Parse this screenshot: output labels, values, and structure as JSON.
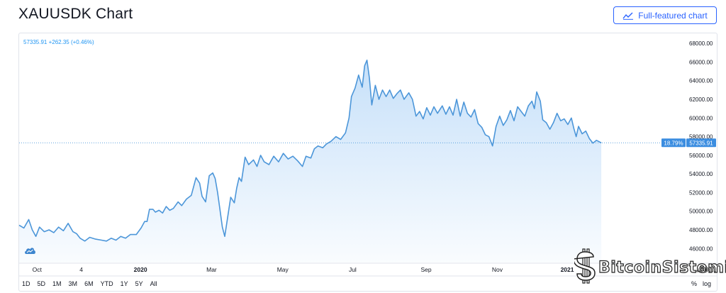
{
  "header": {
    "title": "XAUUSDK Chart",
    "full_chart_label": "Full-featured chart"
  },
  "legend": {
    "text": "57335.91 +262.35 (+0.46%)"
  },
  "price_label": {
    "percent": "18.79%",
    "value": "57335.91"
  },
  "range_buttons": [
    "1D",
    "5D",
    "1M",
    "3M",
    "6M",
    "YTD",
    "1Y",
    "5Y",
    "All"
  ],
  "toggles": {
    "percent": "%",
    "log": "log"
  },
  "watermark": {
    "brand": "BitcoinSistemi",
    "domain": ".com"
  },
  "colors": {
    "line": "#4c96d9",
    "accent": "#2962ff",
    "label_bg": "#3b8de0"
  },
  "chart_data": {
    "type": "area",
    "title": "",
    "xlabel": "",
    "ylabel": "",
    "ylim": [
      44500,
      69000
    ],
    "y_ticks": [
      46000,
      48000,
      50000,
      52000,
      54000,
      56000,
      58000,
      60000,
      62000,
      64000,
      66000,
      68000
    ],
    "y_tick_labels": [
      "46000.00",
      "48000.00",
      "50000.00",
      "52000.00",
      "54000.00",
      "56000.00",
      "58000.00",
      "60000.00",
      "62000.00",
      "64000.00",
      "66000.00",
      "68000.00"
    ],
    "x_ticks": [
      {
        "label": "Oct",
        "x": 0.03
      },
      {
        "label": "4",
        "x": 0.104
      },
      {
        "label": "2020",
        "x": 0.203
      },
      {
        "label": "Mar",
        "x": 0.322
      },
      {
        "label": "May",
        "x": 0.441
      },
      {
        "label": "Jul",
        "x": 0.558
      },
      {
        "label": "Sep",
        "x": 0.681
      },
      {
        "label": "Nov",
        "x": 0.8
      },
      {
        "label": "2021",
        "x": 0.917
      }
    ],
    "last_value": 57335.91,
    "series": [
      {
        "values": [
          [
            0.0,
            48500
          ],
          [
            0.008,
            48200
          ],
          [
            0.016,
            49100
          ],
          [
            0.022,
            48000
          ],
          [
            0.028,
            47300
          ],
          [
            0.034,
            48300
          ],
          [
            0.042,
            47800
          ],
          [
            0.05,
            48000
          ],
          [
            0.058,
            47700
          ],
          [
            0.066,
            48300
          ],
          [
            0.074,
            47900
          ],
          [
            0.082,
            48700
          ],
          [
            0.09,
            47800
          ],
          [
            0.096,
            47600
          ],
          [
            0.102,
            47100
          ],
          [
            0.11,
            46800
          ],
          [
            0.118,
            47200
          ],
          [
            0.128,
            47000
          ],
          [
            0.138,
            46900
          ],
          [
            0.146,
            46800
          ],
          [
            0.154,
            47100
          ],
          [
            0.162,
            46900
          ],
          [
            0.17,
            47300
          ],
          [
            0.178,
            47100
          ],
          [
            0.186,
            47500
          ],
          [
            0.196,
            47500
          ],
          [
            0.204,
            48200
          ],
          [
            0.21,
            48900
          ],
          [
            0.214,
            48900
          ],
          [
            0.218,
            50200
          ],
          [
            0.224,
            50200
          ],
          [
            0.228,
            49900
          ],
          [
            0.234,
            50100
          ],
          [
            0.24,
            49800
          ],
          [
            0.246,
            50500
          ],
          [
            0.252,
            50100
          ],
          [
            0.258,
            50300
          ],
          [
            0.266,
            51000
          ],
          [
            0.272,
            50600
          ],
          [
            0.28,
            51300
          ],
          [
            0.288,
            51700
          ],
          [
            0.296,
            53600
          ],
          [
            0.302,
            53000
          ],
          [
            0.306,
            51600
          ],
          [
            0.312,
            51000
          ],
          [
            0.318,
            53800
          ],
          [
            0.324,
            54100
          ],
          [
            0.328,
            53500
          ],
          [
            0.332,
            52000
          ],
          [
            0.336,
            50200
          ],
          [
            0.34,
            48300
          ],
          [
            0.344,
            47300
          ],
          [
            0.348,
            49000
          ],
          [
            0.354,
            51500
          ],
          [
            0.36,
            50900
          ],
          [
            0.364,
            52500
          ],
          [
            0.368,
            53600
          ],
          [
            0.372,
            53200
          ],
          [
            0.378,
            55800
          ],
          [
            0.384,
            55000
          ],
          [
            0.392,
            55500
          ],
          [
            0.398,
            54800
          ],
          [
            0.404,
            56000
          ],
          [
            0.41,
            55300
          ],
          [
            0.418,
            55000
          ],
          [
            0.426,
            55900
          ],
          [
            0.434,
            55300
          ],
          [
            0.442,
            56200
          ],
          [
            0.45,
            55600
          ],
          [
            0.458,
            55900
          ],
          [
            0.466,
            55400
          ],
          [
            0.474,
            54800
          ],
          [
            0.48,
            55900
          ],
          [
            0.488,
            55700
          ],
          [
            0.494,
            56700
          ],
          [
            0.5,
            57000
          ],
          [
            0.508,
            56800
          ],
          [
            0.514,
            57200
          ],
          [
            0.522,
            57500
          ],
          [
            0.53,
            58000
          ],
          [
            0.538,
            57700
          ],
          [
            0.546,
            58400
          ],
          [
            0.552,
            60000
          ],
          [
            0.556,
            62300
          ],
          [
            0.562,
            63200
          ],
          [
            0.568,
            64600
          ],
          [
            0.574,
            63300
          ],
          [
            0.578,
            65600
          ],
          [
            0.582,
            66200
          ],
          [
            0.586,
            64300
          ],
          [
            0.59,
            61400
          ],
          [
            0.596,
            63500
          ],
          [
            0.602,
            62000
          ],
          [
            0.608,
            63000
          ],
          [
            0.614,
            62300
          ],
          [
            0.62,
            63000
          ],
          [
            0.626,
            62100
          ],
          [
            0.632,
            62600
          ],
          [
            0.638,
            63000
          ],
          [
            0.644,
            62000
          ],
          [
            0.652,
            62700
          ],
          [
            0.658,
            62000
          ],
          [
            0.664,
            60200
          ],
          [
            0.67,
            60700
          ],
          [
            0.676,
            59900
          ],
          [
            0.682,
            61100
          ],
          [
            0.688,
            60300
          ],
          [
            0.694,
            61200
          ],
          [
            0.7,
            60500
          ],
          [
            0.708,
            61300
          ],
          [
            0.714,
            60400
          ],
          [
            0.72,
            61200
          ],
          [
            0.726,
            60300
          ],
          [
            0.732,
            62000
          ],
          [
            0.738,
            60200
          ],
          [
            0.744,
            61700
          ],
          [
            0.75,
            60500
          ],
          [
            0.756,
            60100
          ],
          [
            0.762,
            60900
          ],
          [
            0.768,
            59400
          ],
          [
            0.774,
            59000
          ],
          [
            0.78,
            58200
          ],
          [
            0.786,
            58000
          ],
          [
            0.792,
            57000
          ],
          [
            0.798,
            59100
          ],
          [
            0.804,
            60200
          ],
          [
            0.81,
            59200
          ],
          [
            0.816,
            59800
          ],
          [
            0.822,
            60800
          ],
          [
            0.828,
            59700
          ],
          [
            0.834,
            61200
          ],
          [
            0.84,
            60700
          ],
          [
            0.846,
            60200
          ],
          [
            0.852,
            61300
          ],
          [
            0.858,
            61800
          ],
          [
            0.862,
            61000
          ],
          [
            0.866,
            62800
          ],
          [
            0.872,
            61800
          ],
          [
            0.876,
            59800
          ],
          [
            0.882,
            59500
          ],
          [
            0.888,
            58800
          ],
          [
            0.894,
            59500
          ],
          [
            0.9,
            60500
          ],
          [
            0.906,
            59700
          ],
          [
            0.912,
            59900
          ],
          [
            0.918,
            59300
          ],
          [
            0.924,
            60000
          ],
          [
            0.928,
            58900
          ],
          [
            0.932,
            58000
          ],
          [
            0.936,
            59100
          ],
          [
            0.942,
            58300
          ],
          [
            0.948,
            58600
          ],
          [
            0.954,
            57800
          ],
          [
            0.96,
            57300
          ],
          [
            0.966,
            57600
          ],
          [
            0.974,
            57335.91
          ]
        ]
      }
    ]
  }
}
